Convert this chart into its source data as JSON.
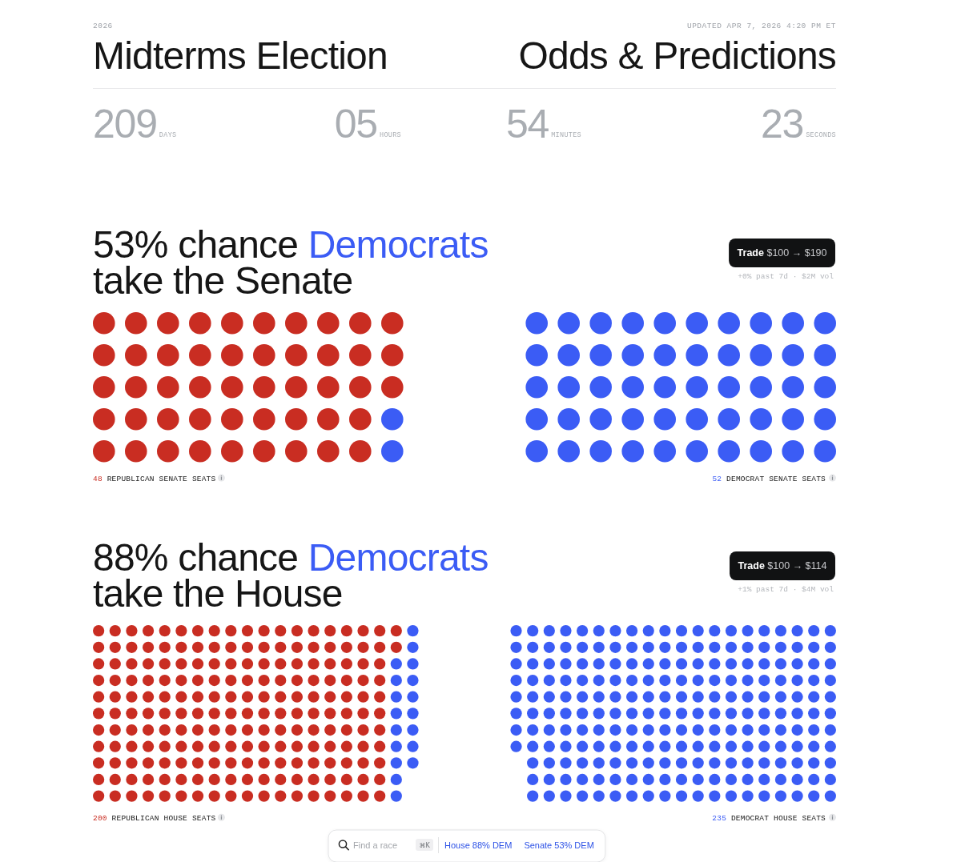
{
  "chart_data": [
    {
      "type": "other",
      "title": "Midterms Election",
      "subtitle": "Odds & Predictions",
      "annotations": [
        "2026",
        "UPDATED APR 7, 2026 4:20 PM ET",
        "209",
        "DAYS",
        "05",
        "HOURS",
        "54",
        "MINUTES",
        "23",
        "SECONDS"
      ]
    },
    {
      "type": "other",
      "title": "53% chance Democrats take the Senate",
      "categories": [
        "REPUBLICAN SENATE SEATS",
        "DEMOCRAT SENATE SEATS"
      ],
      "values": [
        48,
        52
      ],
      "colors": [
        "#c92d22",
        "#3b5cf5"
      ],
      "data_labels": true,
      "annotations": [
        "Trade $100 → $190",
        "+0% past 7d · $2M vol"
      ]
    },
    {
      "type": "other",
      "title": "88% chance Democrats take the House",
      "categories": [
        "REPUBLICAN HOUSE SEATS",
        "DEMOCRAT HOUSE SEATS"
      ],
      "values": [
        200,
        235
      ],
      "colors": [
        "#c92d22",
        "#3b5cf5"
      ],
      "data_labels": true,
      "annotations": [
        "Trade $100 → $114",
        "+1% past 7d · $4M vol"
      ]
    },
    {
      "type": "other",
      "annotations": [
        "Find a race",
        "⌘K",
        "House 88% DEM",
        "Senate 53% DEM"
      ]
    }
  ]
}
